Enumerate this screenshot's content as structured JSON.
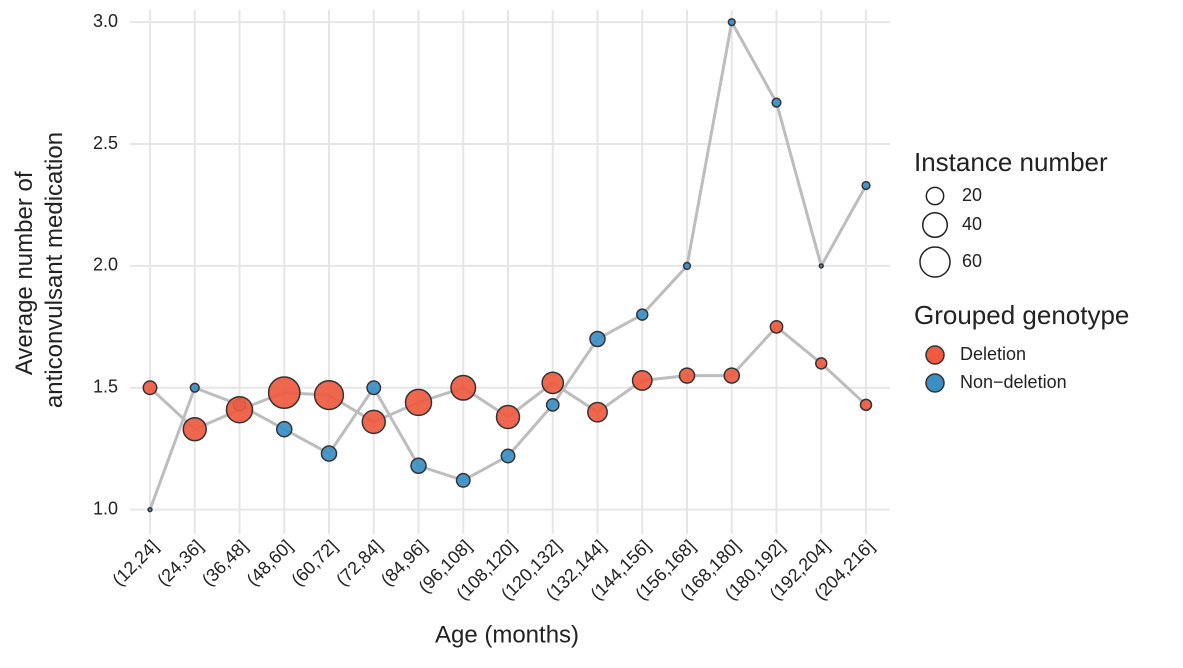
{
  "chart_data": {
    "type": "bubble-line",
    "x_label": "Age (months)",
    "y_label": [
      "Average number of",
      "anticonvulsant medication"
    ],
    "categories": [
      "(12,24]",
      "(24,36]",
      "(36,48]",
      "(48,60]",
      "(60,72]",
      "(72,84]",
      "(84,96]",
      "(96,108]",
      "(108,120]",
      "(120,132]",
      "(132,144]",
      "(144,156]",
      "(156,168]",
      "(168,180]",
      "(180,192]",
      "(192,204]",
      "(204,216]"
    ],
    "series": [
      {
        "name": "Non−deletion",
        "color": "#3a8fc4",
        "values": [
          1.0,
          1.5,
          1.43,
          1.33,
          1.23,
          1.5,
          1.18,
          1.12,
          1.22,
          1.43,
          1.7,
          1.8,
          2.0,
          3.0,
          2.67,
          2.0,
          2.33
        ],
        "sizes": [
          1,
          5,
          10,
          15,
          15,
          12,
          15,
          12,
          12,
          10,
          15,
          8,
          3,
          3,
          5,
          1,
          4
        ]
      },
      {
        "name": "Deletion",
        "color": "#ef5a41",
        "values": [
          1.5,
          1.33,
          1.41,
          1.48,
          1.47,
          1.36,
          1.44,
          1.5,
          1.38,
          1.52,
          1.4,
          1.53,
          1.55,
          1.55,
          1.75,
          1.6,
          1.43
        ],
        "sizes": [
          12,
          35,
          45,
          65,
          55,
          35,
          45,
          40,
          35,
          30,
          25,
          25,
          15,
          15,
          10,
          8,
          8
        ]
      }
    ],
    "line_color": "#bdbdbd",
    "ylim": [
      0.9,
      3.05
    ],
    "yticks": [
      {
        "value": 1.0,
        "label": "1.0"
      },
      1.5,
      {
        "value": 2.0,
        "label": "2.0"
      },
      2.5,
      {
        "value": 3.0,
        "label": "3.0"
      }
    ],
    "grid": true,
    "size_legend": {
      "title": "Instance number",
      "values": [
        20,
        40,
        60
      ]
    },
    "color_legend_title": "Grouped genotype"
  }
}
